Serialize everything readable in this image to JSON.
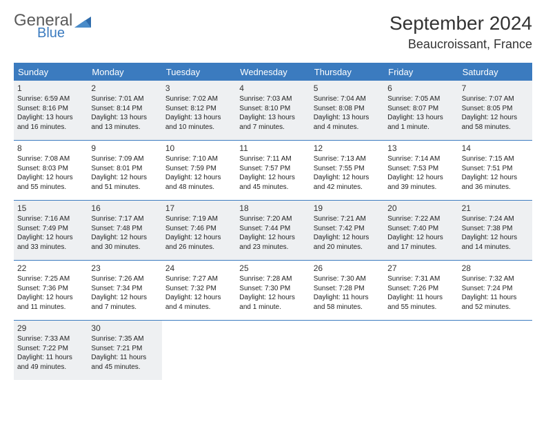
{
  "brand": {
    "general": "General",
    "blue": "Blue"
  },
  "title": "September 2024",
  "location": "Beaucroissant, France",
  "colors": {
    "header_bg": "#3b7bbf",
    "shaded_bg": "#eef0f2",
    "rule": "#3b7bbf",
    "text": "#222222"
  },
  "dow": [
    "Sunday",
    "Monday",
    "Tuesday",
    "Wednesday",
    "Thursday",
    "Friday",
    "Saturday"
  ],
  "weeks": [
    [
      {
        "n": "1",
        "sr": "Sunrise: 6:59 AM",
        "ss": "Sunset: 8:16 PM",
        "d1": "Daylight: 13 hours",
        "d2": "and 16 minutes."
      },
      {
        "n": "2",
        "sr": "Sunrise: 7:01 AM",
        "ss": "Sunset: 8:14 PM",
        "d1": "Daylight: 13 hours",
        "d2": "and 13 minutes."
      },
      {
        "n": "3",
        "sr": "Sunrise: 7:02 AM",
        "ss": "Sunset: 8:12 PM",
        "d1": "Daylight: 13 hours",
        "d2": "and 10 minutes."
      },
      {
        "n": "4",
        "sr": "Sunrise: 7:03 AM",
        "ss": "Sunset: 8:10 PM",
        "d1": "Daylight: 13 hours",
        "d2": "and 7 minutes."
      },
      {
        "n": "5",
        "sr": "Sunrise: 7:04 AM",
        "ss": "Sunset: 8:08 PM",
        "d1": "Daylight: 13 hours",
        "d2": "and 4 minutes."
      },
      {
        "n": "6",
        "sr": "Sunrise: 7:05 AM",
        "ss": "Sunset: 8:07 PM",
        "d1": "Daylight: 13 hours",
        "d2": "and 1 minute."
      },
      {
        "n": "7",
        "sr": "Sunrise: 7:07 AM",
        "ss": "Sunset: 8:05 PM",
        "d1": "Daylight: 12 hours",
        "d2": "and 58 minutes."
      }
    ],
    [
      {
        "n": "8",
        "sr": "Sunrise: 7:08 AM",
        "ss": "Sunset: 8:03 PM",
        "d1": "Daylight: 12 hours",
        "d2": "and 55 minutes."
      },
      {
        "n": "9",
        "sr": "Sunrise: 7:09 AM",
        "ss": "Sunset: 8:01 PM",
        "d1": "Daylight: 12 hours",
        "d2": "and 51 minutes."
      },
      {
        "n": "10",
        "sr": "Sunrise: 7:10 AM",
        "ss": "Sunset: 7:59 PM",
        "d1": "Daylight: 12 hours",
        "d2": "and 48 minutes."
      },
      {
        "n": "11",
        "sr": "Sunrise: 7:11 AM",
        "ss": "Sunset: 7:57 PM",
        "d1": "Daylight: 12 hours",
        "d2": "and 45 minutes."
      },
      {
        "n": "12",
        "sr": "Sunrise: 7:13 AM",
        "ss": "Sunset: 7:55 PM",
        "d1": "Daylight: 12 hours",
        "d2": "and 42 minutes."
      },
      {
        "n": "13",
        "sr": "Sunrise: 7:14 AM",
        "ss": "Sunset: 7:53 PM",
        "d1": "Daylight: 12 hours",
        "d2": "and 39 minutes."
      },
      {
        "n": "14",
        "sr": "Sunrise: 7:15 AM",
        "ss": "Sunset: 7:51 PM",
        "d1": "Daylight: 12 hours",
        "d2": "and 36 minutes."
      }
    ],
    [
      {
        "n": "15",
        "sr": "Sunrise: 7:16 AM",
        "ss": "Sunset: 7:49 PM",
        "d1": "Daylight: 12 hours",
        "d2": "and 33 minutes."
      },
      {
        "n": "16",
        "sr": "Sunrise: 7:17 AM",
        "ss": "Sunset: 7:48 PM",
        "d1": "Daylight: 12 hours",
        "d2": "and 30 minutes."
      },
      {
        "n": "17",
        "sr": "Sunrise: 7:19 AM",
        "ss": "Sunset: 7:46 PM",
        "d1": "Daylight: 12 hours",
        "d2": "and 26 minutes."
      },
      {
        "n": "18",
        "sr": "Sunrise: 7:20 AM",
        "ss": "Sunset: 7:44 PM",
        "d1": "Daylight: 12 hours",
        "d2": "and 23 minutes."
      },
      {
        "n": "19",
        "sr": "Sunrise: 7:21 AM",
        "ss": "Sunset: 7:42 PM",
        "d1": "Daylight: 12 hours",
        "d2": "and 20 minutes."
      },
      {
        "n": "20",
        "sr": "Sunrise: 7:22 AM",
        "ss": "Sunset: 7:40 PM",
        "d1": "Daylight: 12 hours",
        "d2": "and 17 minutes."
      },
      {
        "n": "21",
        "sr": "Sunrise: 7:24 AM",
        "ss": "Sunset: 7:38 PM",
        "d1": "Daylight: 12 hours",
        "d2": "and 14 minutes."
      }
    ],
    [
      {
        "n": "22",
        "sr": "Sunrise: 7:25 AM",
        "ss": "Sunset: 7:36 PM",
        "d1": "Daylight: 12 hours",
        "d2": "and 11 minutes."
      },
      {
        "n": "23",
        "sr": "Sunrise: 7:26 AM",
        "ss": "Sunset: 7:34 PM",
        "d1": "Daylight: 12 hours",
        "d2": "and 7 minutes."
      },
      {
        "n": "24",
        "sr": "Sunrise: 7:27 AM",
        "ss": "Sunset: 7:32 PM",
        "d1": "Daylight: 12 hours",
        "d2": "and 4 minutes."
      },
      {
        "n": "25",
        "sr": "Sunrise: 7:28 AM",
        "ss": "Sunset: 7:30 PM",
        "d1": "Daylight: 12 hours",
        "d2": "and 1 minute."
      },
      {
        "n": "26",
        "sr": "Sunrise: 7:30 AM",
        "ss": "Sunset: 7:28 PM",
        "d1": "Daylight: 11 hours",
        "d2": "and 58 minutes."
      },
      {
        "n": "27",
        "sr": "Sunrise: 7:31 AM",
        "ss": "Sunset: 7:26 PM",
        "d1": "Daylight: 11 hours",
        "d2": "and 55 minutes."
      },
      {
        "n": "28",
        "sr": "Sunrise: 7:32 AM",
        "ss": "Sunset: 7:24 PM",
        "d1": "Daylight: 11 hours",
        "d2": "and 52 minutes."
      }
    ],
    [
      {
        "n": "29",
        "sr": "Sunrise: 7:33 AM",
        "ss": "Sunset: 7:22 PM",
        "d1": "Daylight: 11 hours",
        "d2": "and 49 minutes."
      },
      {
        "n": "30",
        "sr": "Sunrise: 7:35 AM",
        "ss": "Sunset: 7:21 PM",
        "d1": "Daylight: 11 hours",
        "d2": "and 45 minutes."
      },
      null,
      null,
      null,
      null,
      null
    ]
  ]
}
